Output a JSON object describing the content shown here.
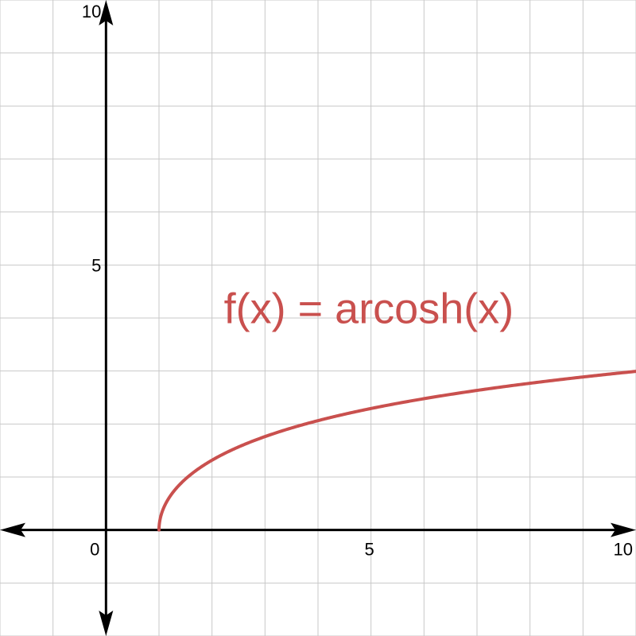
{
  "chart_data": {
    "type": "line",
    "title": "",
    "xlabel": "",
    "ylabel": "",
    "xlim": [
      -2,
      10
    ],
    "ylim": [
      -2,
      10
    ],
    "grid": true,
    "grid_step": 1,
    "x_ticks": [
      {
        "value": 0,
        "label": "0"
      },
      {
        "value": 5,
        "label": "5"
      },
      {
        "value": 10,
        "label": "10"
      }
    ],
    "y_ticks": [
      {
        "value": 5,
        "label": "5"
      },
      {
        "value": 10,
        "label": "10"
      }
    ],
    "series": [
      {
        "function": "arcosh",
        "domain": [
          1,
          10
        ],
        "color": "#c9504e",
        "points": [
          [
            1,
            0
          ],
          [
            1.1,
            0.443
          ],
          [
            1.25,
            0.693
          ],
          [
            1.5,
            0.962
          ],
          [
            2,
            1.317
          ],
          [
            2.5,
            1.567
          ],
          [
            3,
            1.763
          ],
          [
            4,
            2.063
          ],
          [
            5,
            2.292
          ],
          [
            6,
            2.478
          ],
          [
            7,
            2.634
          ],
          [
            8,
            2.769
          ],
          [
            9,
            2.887
          ],
          [
            10,
            2.993
          ]
        ]
      }
    ],
    "annotations": [
      {
        "text": "f(x) = arcosh(x)",
        "x": 3.8,
        "y": 4.2,
        "color": "#c9504e"
      }
    ]
  },
  "colors": {
    "axis": "#000000",
    "grid": "#c8c8c8",
    "curve": "#c9504e"
  }
}
